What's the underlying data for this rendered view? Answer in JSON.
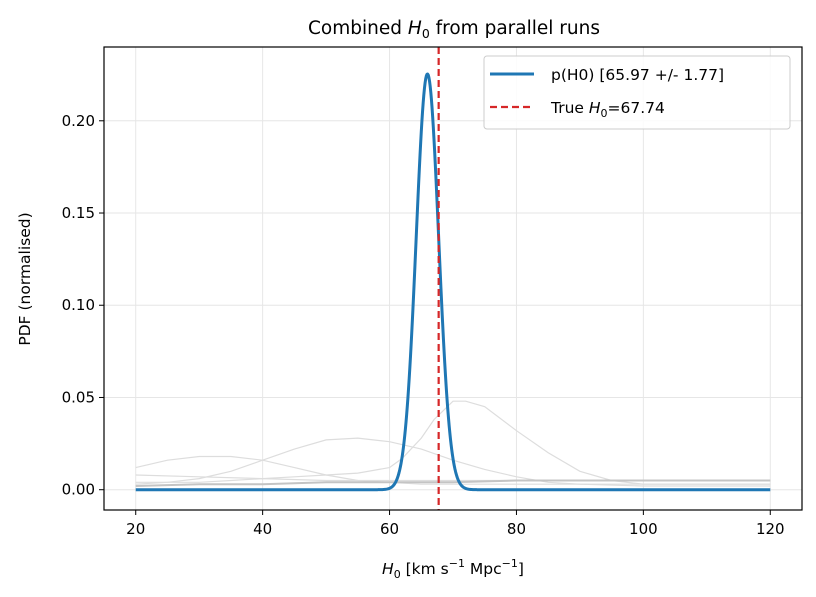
{
  "chart_data": {
    "type": "line",
    "title_main": "Combined ",
    "title_var": "H",
    "title_sub": "0",
    "title_rest": " from parallel runs",
    "xlabel_var": "H",
    "xlabel_sub": "0",
    "xlabel_unit_a": " [km s",
    "xlabel_exp_a": "−1",
    "xlabel_unit_b": " Mpc",
    "xlabel_exp_b": "−1",
    "xlabel_end": "]",
    "ylabel": "PDF (normalised)",
    "xlim": [
      15,
      125
    ],
    "ylim": [
      -0.011,
      0.24
    ],
    "xticks": [
      20,
      40,
      60,
      80,
      100,
      120
    ],
    "yticks": [
      0.0,
      0.05,
      0.1,
      0.15,
      0.2
    ],
    "ytick_labels": [
      "0.00",
      "0.05",
      "0.10",
      "0.15",
      "0.20"
    ],
    "grid": true,
    "legend_position": "top-right",
    "combined": {
      "name": "p(H0) [65.97 +/- 1.77]",
      "mean": 65.97,
      "sigma": 1.77,
      "color": "#1f77b4"
    },
    "true_value": {
      "label_a": "True ",
      "label_var": "H",
      "label_sub": "0",
      "label_b": "=67.74",
      "x": 67.74,
      "color": "#d62728"
    },
    "background_runs": [
      {
        "color": "#dddddd",
        "x": [
          20,
          25,
          30,
          35,
          40,
          45,
          50,
          55,
          60,
          62,
          65,
          67,
          70,
          72,
          75,
          80,
          85,
          90,
          95,
          100,
          120
        ],
        "y": [
          0.004,
          0.004,
          0.004,
          0.005,
          0.006,
          0.007,
          0.008,
          0.009,
          0.012,
          0.017,
          0.028,
          0.038,
          0.048,
          0.048,
          0.045,
          0.032,
          0.02,
          0.01,
          0.005,
          0.003,
          0.003
        ]
      },
      {
        "color": "#dddddd",
        "x": [
          20,
          25,
          30,
          35,
          40,
          45,
          50,
          55,
          60,
          65,
          70,
          75,
          80,
          85,
          90,
          100,
          110,
          120
        ],
        "y": [
          0.003,
          0.004,
          0.006,
          0.01,
          0.016,
          0.022,
          0.027,
          0.028,
          0.026,
          0.022,
          0.016,
          0.011,
          0.007,
          0.004,
          0.003,
          0.002,
          0.002,
          0.002
        ]
      },
      {
        "color": "#dddddd",
        "x": [
          20,
          25,
          30,
          35,
          40,
          45,
          50,
          55,
          60,
          65,
          70,
          80,
          90,
          100,
          120
        ],
        "y": [
          0.012,
          0.016,
          0.018,
          0.018,
          0.016,
          0.012,
          0.008,
          0.005,
          0.004,
          0.003,
          0.003,
          0.003,
          0.003,
          0.003,
          0.003
        ]
      },
      {
        "color": "#dddddd",
        "x": [
          20,
          30,
          40,
          50,
          60,
          70,
          80,
          90,
          100,
          110,
          120
        ],
        "y": [
          0.008,
          0.007,
          0.006,
          0.005,
          0.005,
          0.005,
          0.005,
          0.005,
          0.005,
          0.005,
          0.005
        ]
      },
      {
        "color": "#c4c4c4",
        "x": [
          20,
          30,
          40,
          50,
          60,
          70,
          80,
          90,
          100,
          110,
          120
        ],
        "y": [
          0.002,
          0.003,
          0.003,
          0.004,
          0.004,
          0.004,
          0.005,
          0.005,
          0.005,
          0.005,
          0.005
        ]
      }
    ]
  }
}
